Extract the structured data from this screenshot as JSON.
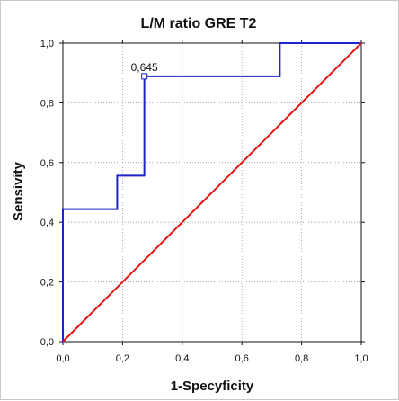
{
  "chart_data": {
    "type": "line",
    "title": "L/M  ratio GRE T2",
    "xlabel": "1-Specyficity",
    "ylabel": "Sensivity",
    "xlim": [
      0,
      1
    ],
    "ylim": [
      0,
      1
    ],
    "xticks": [
      "0,0",
      "0,2",
      "0,4",
      "0,6",
      "0,8",
      "1,0"
    ],
    "yticks": [
      "0,0",
      "0,2",
      "0,4",
      "0,6",
      "0,8",
      "1,0"
    ],
    "grid": true,
    "series": [
      {
        "color": "#1f24c8",
        "x": [
          0,
          0,
          0.182,
          0.182,
          0.273,
          0.273,
          0.273,
          0.727,
          0.727,
          1.0
        ],
        "y": [
          0,
          0.444,
          0.444,
          0.556,
          0.556,
          0.889,
          0.889,
          0.889,
          1.0,
          1.0
        ]
      },
      {
        "color": "#e01010",
        "x": [
          0,
          1
        ],
        "y": [
          0,
          1
        ]
      }
    ],
    "annotations": [
      {
        "text": "0,645",
        "x": 0.273,
        "y": 0.889
      }
    ]
  }
}
